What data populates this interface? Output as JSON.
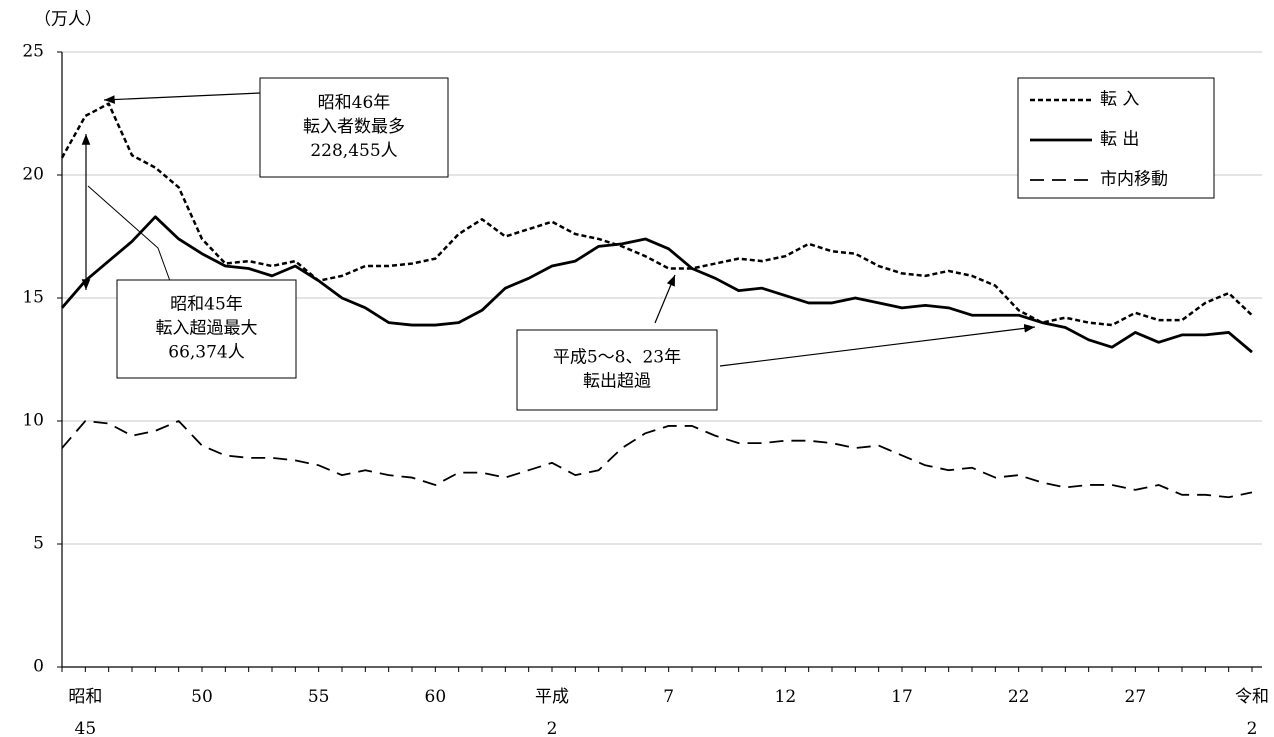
{
  "chart_data": {
    "type": "line",
    "y_unit": "（万人）",
    "categories": [
      null,
      "昭和\n45",
      null,
      null,
      null,
      null,
      "50",
      null,
      null,
      null,
      null,
      "55",
      null,
      null,
      null,
      null,
      "60",
      null,
      null,
      null,
      null,
      "平成\n2",
      null,
      null,
      null,
      null,
      "7",
      null,
      null,
      null,
      null,
      "12",
      null,
      null,
      null,
      null,
      "17",
      null,
      null,
      null,
      null,
      "22",
      null,
      null,
      null,
      null,
      "27",
      null,
      null,
      null,
      null,
      "令和\n2"
    ],
    "series": [
      {
        "name": "転 入",
        "color": "#000000",
        "style": "dotted",
        "values": [
          20.7,
          22.4,
          22.9,
          20.8,
          20.3,
          19.5,
          17.4,
          16.4,
          16.5,
          16.3,
          16.5,
          15.7,
          15.9,
          16.3,
          16.3,
          16.4,
          16.6,
          17.6,
          18.2,
          17.5,
          17.8,
          18.1,
          17.6,
          17.4,
          17.1,
          16.7,
          16.2,
          16.2,
          16.4,
          16.6,
          16.5,
          16.7,
          17.2,
          16.9,
          16.8,
          16.3,
          16.0,
          15.9,
          16.1,
          15.9,
          15.5,
          14.5,
          14.0,
          14.2,
          14.0,
          13.9,
          14.4,
          14.1,
          14.1,
          14.8,
          15.2,
          14.3
        ]
      },
      {
        "name": "転 出",
        "color": "#000000",
        "style": "solid",
        "values": [
          14.6,
          15.7,
          16.5,
          17.3,
          18.3,
          17.4,
          16.8,
          16.3,
          16.2,
          15.9,
          16.3,
          15.7,
          15.0,
          14.6,
          14.0,
          13.9,
          13.9,
          14.0,
          14.5,
          15.4,
          15.8,
          16.3,
          16.5,
          17.1,
          17.2,
          17.4,
          17.0,
          16.2,
          15.8,
          15.3,
          15.4,
          15.1,
          14.8,
          14.8,
          15.0,
          14.8,
          14.6,
          14.7,
          14.6,
          14.3,
          14.3,
          14.3,
          14.0,
          13.8,
          13.3,
          13.0,
          13.6,
          13.2,
          13.5,
          13.5,
          13.6,
          12.8
        ]
      },
      {
        "name": "市内移動",
        "color": "#000000",
        "style": "dashed",
        "values": [
          8.9,
          10.0,
          9.9,
          9.4,
          9.6,
          10.0,
          9.0,
          8.6,
          8.5,
          8.5,
          8.4,
          8.2,
          7.8,
          8.0,
          7.8,
          7.7,
          7.4,
          7.9,
          7.9,
          7.7,
          8.0,
          8.3,
          7.8,
          8.0,
          8.9,
          9.5,
          9.8,
          9.8,
          9.4,
          9.1,
          9.1,
          9.2,
          9.2,
          9.1,
          8.9,
          9.0,
          8.6,
          8.2,
          8.0,
          8.1,
          7.7,
          7.8,
          7.5,
          7.3,
          7.4,
          7.4,
          7.2,
          7.4,
          7.0,
          7.0,
          6.9,
          7.1
        ]
      }
    ],
    "ylim": [
      0,
      25
    ],
    "yticks": [
      0,
      5,
      10,
      15,
      20,
      25
    ],
    "grid": true,
    "legend": "top-right",
    "annotations": [
      {
        "lines": [
          "昭和46年",
          "転入者数最多",
          "228,455人"
        ]
      },
      {
        "lines": [
          "昭和45年",
          "転入超過最大",
          "66,374人"
        ]
      },
      {
        "lines": [
          "平成5～8、23年",
          "転出超過"
        ]
      }
    ]
  }
}
